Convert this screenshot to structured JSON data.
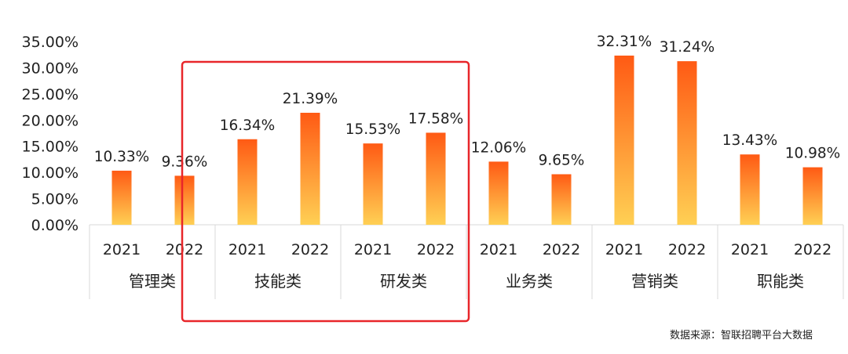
{
  "chart_data": {
    "type": "bar",
    "y_ticks": [
      "0.00%",
      "5.00%",
      "10.00%",
      "15.00%",
      "20.00%",
      "25.00%",
      "30.00%",
      "35.00%"
    ],
    "ylim": [
      0,
      35
    ],
    "grid": false,
    "groups": [
      {
        "name": "管理类",
        "bars": [
          {
            "year": "2021",
            "value": 10.33,
            "label": "10.33%"
          },
          {
            "year": "2022",
            "value": 9.36,
            "label": "9.36%"
          }
        ]
      },
      {
        "name": "技能类",
        "bars": [
          {
            "year": "2021",
            "value": 16.34,
            "label": "16.34%"
          },
          {
            "year": "2022",
            "value": 21.39,
            "label": "21.39%"
          }
        ]
      },
      {
        "name": "研发类",
        "bars": [
          {
            "year": "2021",
            "value": 15.53,
            "label": "15.53%"
          },
          {
            "year": "2022",
            "value": 17.58,
            "label": "17.58%"
          }
        ]
      },
      {
        "name": "业务类",
        "bars": [
          {
            "year": "2021",
            "value": 12.06,
            "label": "12.06%"
          },
          {
            "year": "2022",
            "value": 9.65,
            "label": "9.65%"
          }
        ]
      },
      {
        "name": "营销类",
        "bars": [
          {
            "year": "2021",
            "value": 32.31,
            "label": "32.31%"
          },
          {
            "year": "2022",
            "value": 31.24,
            "label": "31.24%"
          }
        ]
      },
      {
        "name": "职能类",
        "bars": [
          {
            "year": "2021",
            "value": 13.43,
            "label": "13.43%"
          },
          {
            "year": "2022",
            "value": 10.98,
            "label": "10.98%"
          }
        ]
      }
    ],
    "highlighted_groups": [
      "技能类",
      "研发类"
    ],
    "colors": {
      "bar_top": "#ff5a14",
      "bar_bottom": "#ffd054",
      "highlight": "#e8262a",
      "axis": "#d9d9d9",
      "text": "#222222"
    },
    "source": "数据来源：智联招聘平台大数据"
  }
}
